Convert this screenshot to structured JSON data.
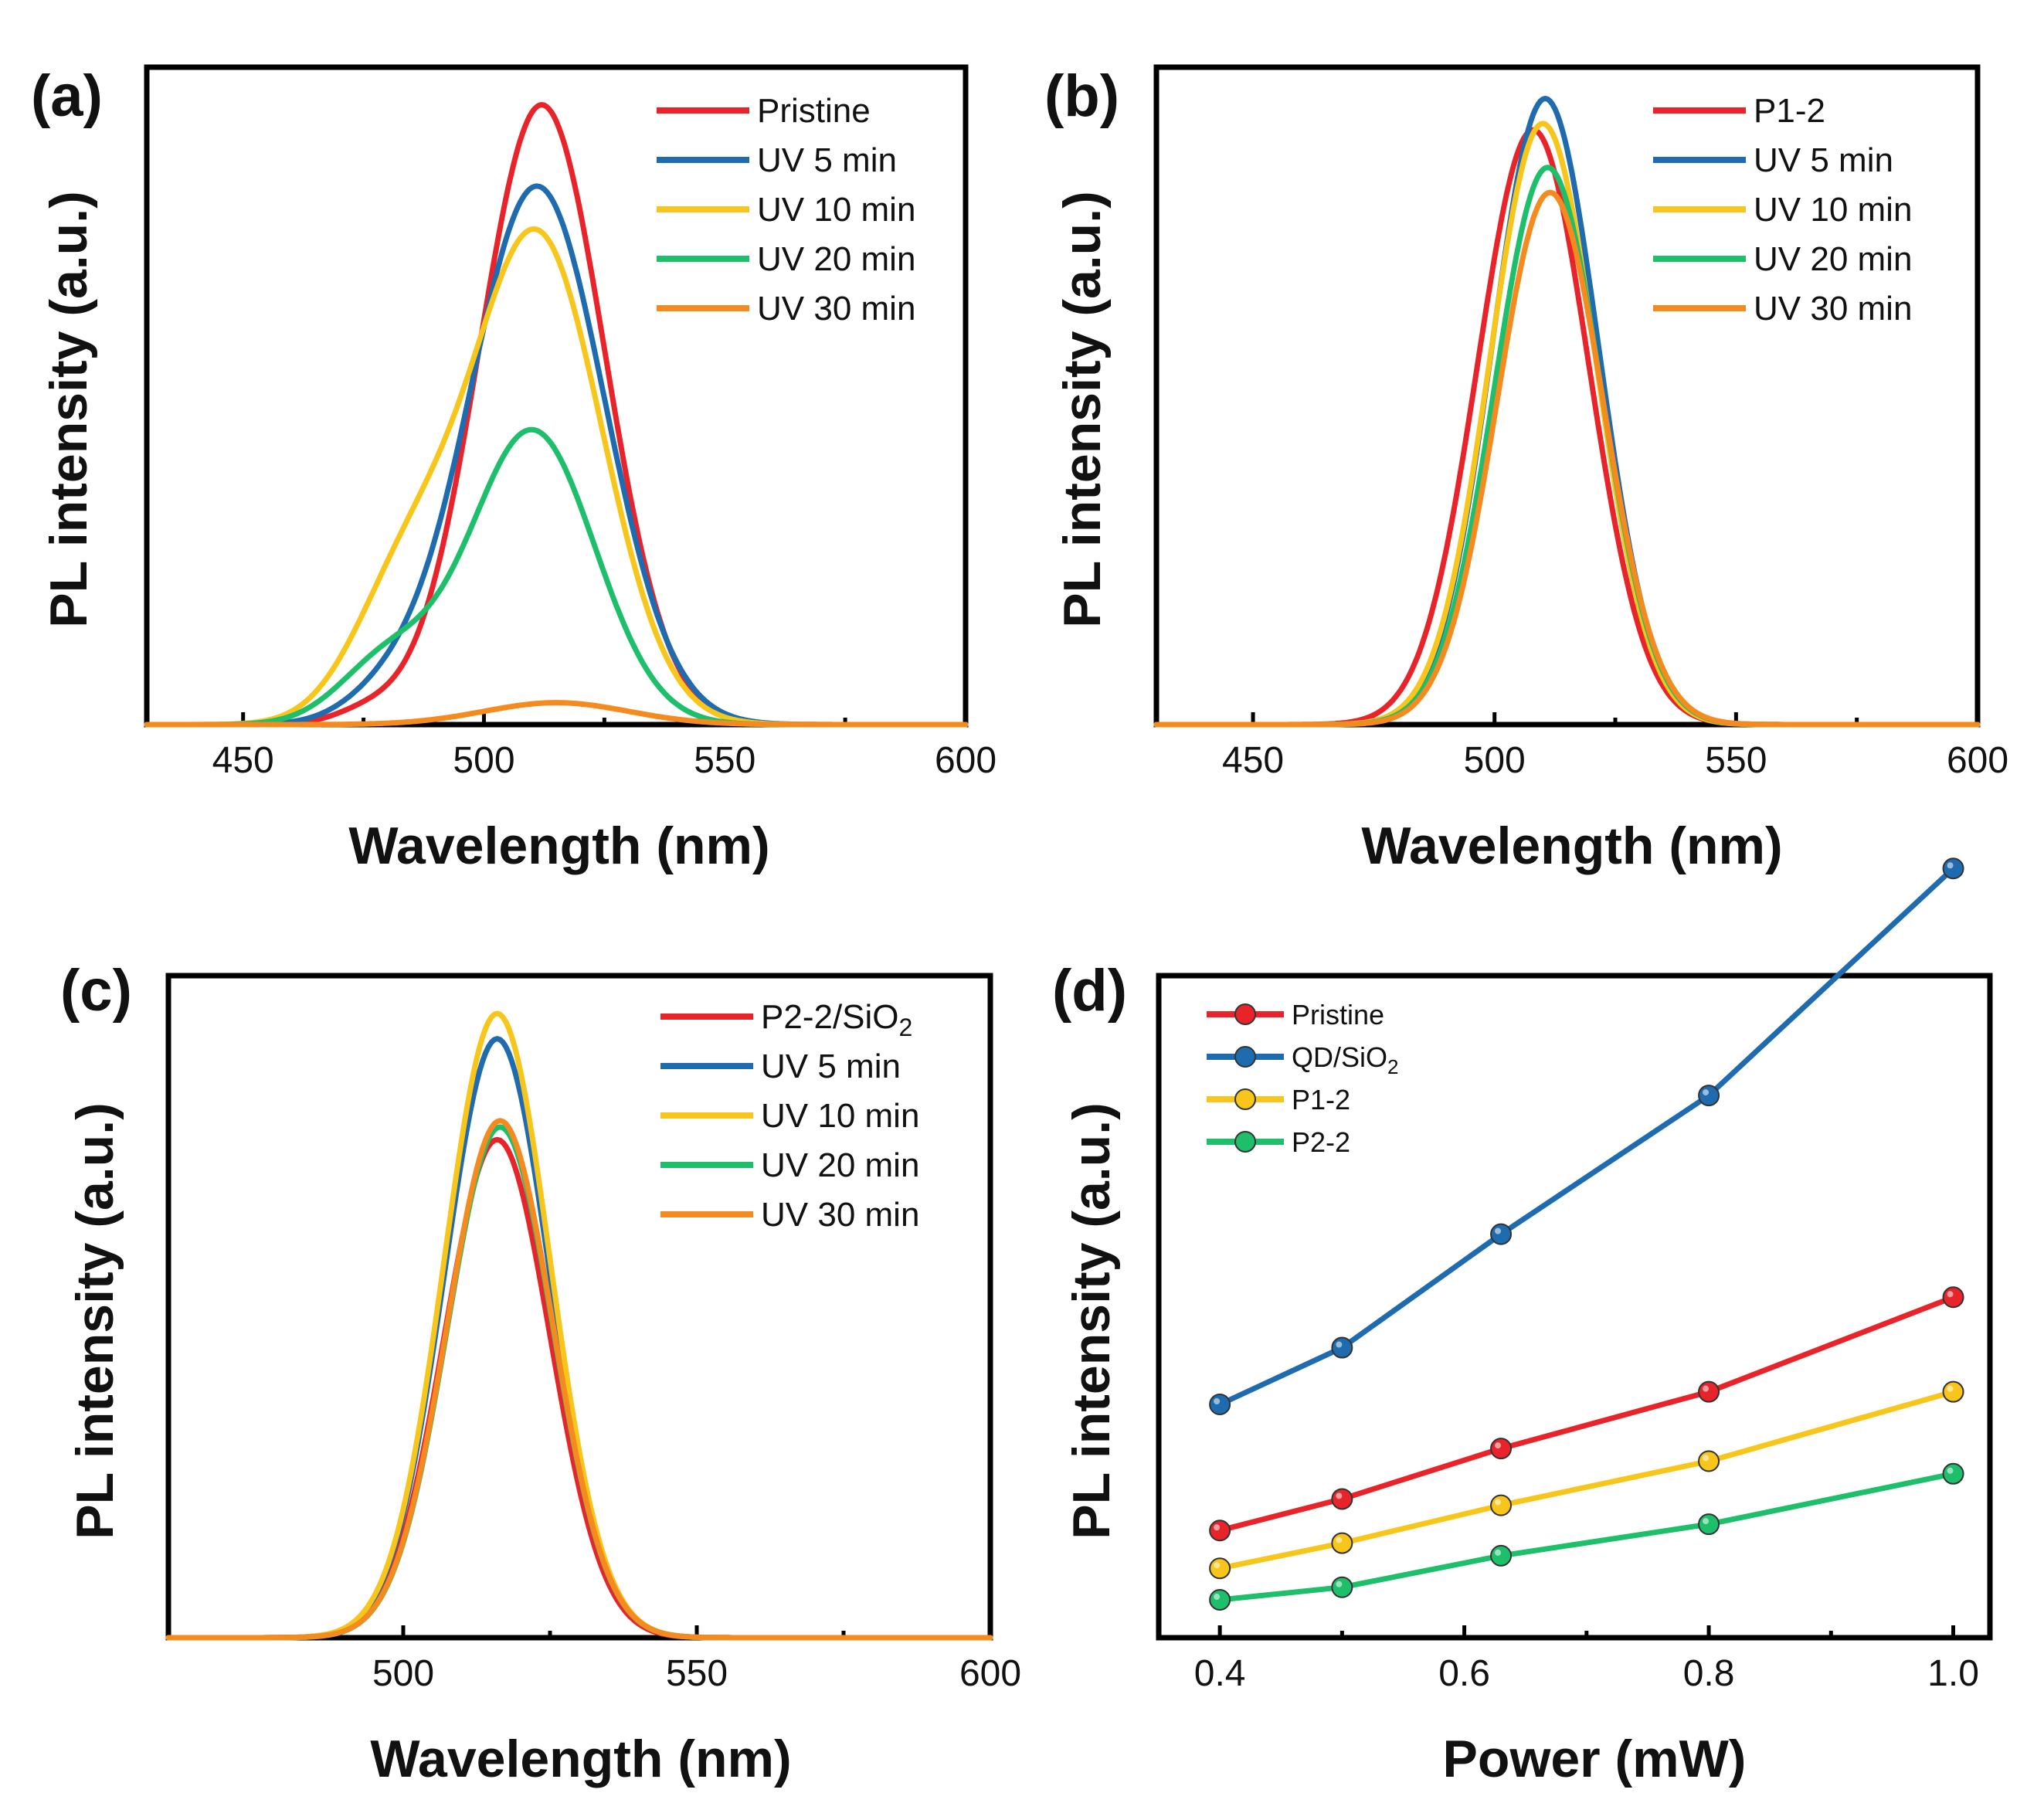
{
  "chart_data": [
    {
      "panel": "(a)",
      "type": "line",
      "xlabel": "Wavelength (nm)",
      "ylabel": "PL intensity (a.u.)",
      "xlim": [
        430,
        600
      ],
      "ylim": [
        0,
        1.05
      ],
      "xticks": [
        450,
        500,
        550,
        600
      ],
      "legend_position": "top-right",
      "series": [
        {
          "name": "Pristine",
          "color": "#e8242a",
          "peaks": [
            {
              "center": 512,
              "width": 13,
              "amp": 0.99
            },
            {
              "center": 476,
              "width": 7,
              "amp": 0.02
            }
          ]
        },
        {
          "name": "UV 5 min",
          "color": "#1f6bb0",
          "peaks": [
            {
              "center": 511,
              "width": 14,
              "amp": 0.86
            },
            {
              "center": 480,
              "width": 9,
              "amp": 0.04
            }
          ]
        },
        {
          "name": "UV 10 min",
          "color": "#f8c51a",
          "peaks": [
            {
              "center": 511,
              "width": 13.5,
              "amp": 0.78
            },
            {
              "center": 484,
              "width": 11,
              "amp": 0.22
            }
          ]
        },
        {
          "name": "UV 20 min",
          "color": "#1ebf6a",
          "peaks": [
            {
              "center": 510,
              "width": 13,
              "amp": 0.47
            },
            {
              "center": 480,
              "width": 10,
              "amp": 0.1
            }
          ]
        },
        {
          "name": "UV 30 min",
          "color": "#f58b1f",
          "peaks": [
            {
              "center": 515,
              "width": 15,
              "amp": 0.035
            }
          ]
        }
      ]
    },
    {
      "panel": "(b)",
      "type": "line",
      "xlabel": "Wavelength (nm)",
      "ylabel": "PL intensity (a.u.)",
      "xlim": [
        430,
        600
      ],
      "ylim": [
        0,
        1.05
      ],
      "xticks": [
        450,
        500,
        550,
        600
      ],
      "legend_position": "top-right",
      "series": [
        {
          "name": "P1-2",
          "color": "#e8242a",
          "peaks": [
            {
              "center": 508,
              "width": 11.5,
              "amp": 0.95
            }
          ]
        },
        {
          "name": "UV 5 min",
          "color": "#1f6bb0",
          "peaks": [
            {
              "center": 510.5,
              "width": 11,
              "amp": 1.0
            }
          ]
        },
        {
          "name": "UV 10 min",
          "color": "#f8c51a",
          "peaks": [
            {
              "center": 510,
              "width": 11,
              "amp": 0.96
            }
          ]
        },
        {
          "name": "UV 20 min",
          "color": "#1ebf6a",
          "peaks": [
            {
              "center": 511,
              "width": 11,
              "amp": 0.89
            }
          ]
        },
        {
          "name": "UV 30 min",
          "color": "#f58b1f",
          "peaks": [
            {
              "center": 511.5,
              "width": 11,
              "amp": 0.85
            }
          ]
        }
      ]
    },
    {
      "panel": "(c)",
      "type": "line",
      "xlabel": "Wavelength (nm)",
      "ylabel": "PL intensity (a.u.)",
      "xlim": [
        460,
        600
      ],
      "ylim": [
        0,
        1.05
      ],
      "xticks": [
        500,
        550,
        600
      ],
      "legend_position": "top-right",
      "series": [
        {
          "name": "P2-2/SiO",
          "subscript": "2",
          "color": "#e8242a",
          "peaks": [
            {
              "center": 516,
              "width": 9,
              "amp": 0.79
            }
          ]
        },
        {
          "name": "UV 5 min",
          "color": "#1f6bb0",
          "peaks": [
            {
              "center": 516,
              "width": 9,
              "amp": 0.95
            }
          ]
        },
        {
          "name": "UV 10 min",
          "color": "#f8c51a",
          "peaks": [
            {
              "center": 516,
              "width": 9,
              "amp": 0.99
            }
          ]
        },
        {
          "name": "UV 20 min",
          "color": "#1ebf6a",
          "peaks": [
            {
              "center": 516.5,
              "width": 9,
              "amp": 0.81
            }
          ]
        },
        {
          "name": "UV 30 min",
          "color": "#f58b1f",
          "peaks": [
            {
              "center": 516.5,
              "width": 9,
              "amp": 0.82
            }
          ]
        }
      ]
    },
    {
      "panel": "(d)",
      "type": "line",
      "xlabel": "Power (mW)",
      "ylabel": "PL intensity (a.u.)",
      "xlim": [
        0.35,
        1.03
      ],
      "ylim": [
        0,
        1.05
      ],
      "xticks": [
        "0.4",
        "0.6",
        "0.8",
        "1.0"
      ],
      "xtick_values": [
        0.4,
        0.6,
        0.8,
        1.0
      ],
      "x": [
        0.4,
        0.5,
        0.63,
        0.8,
        1.0
      ],
      "legend_position": "top-left",
      "series": [
        {
          "name": "Pristine",
          "color": "#e8242a",
          "values": [
            0.17,
            0.22,
            0.3,
            0.39,
            0.54
          ]
        },
        {
          "name": "QD/SiO",
          "subscript": "2",
          "color": "#1f6bb0",
          "values": [
            0.37,
            0.46,
            0.64,
            0.86,
            1.22
          ]
        },
        {
          "name": "P1-2",
          "color": "#f8c51a",
          "values": [
            0.11,
            0.15,
            0.21,
            0.28,
            0.39
          ]
        },
        {
          "name": "P2-2",
          "color": "#1ebf6a",
          "values": [
            0.06,
            0.08,
            0.13,
            0.18,
            0.26
          ]
        }
      ]
    }
  ]
}
